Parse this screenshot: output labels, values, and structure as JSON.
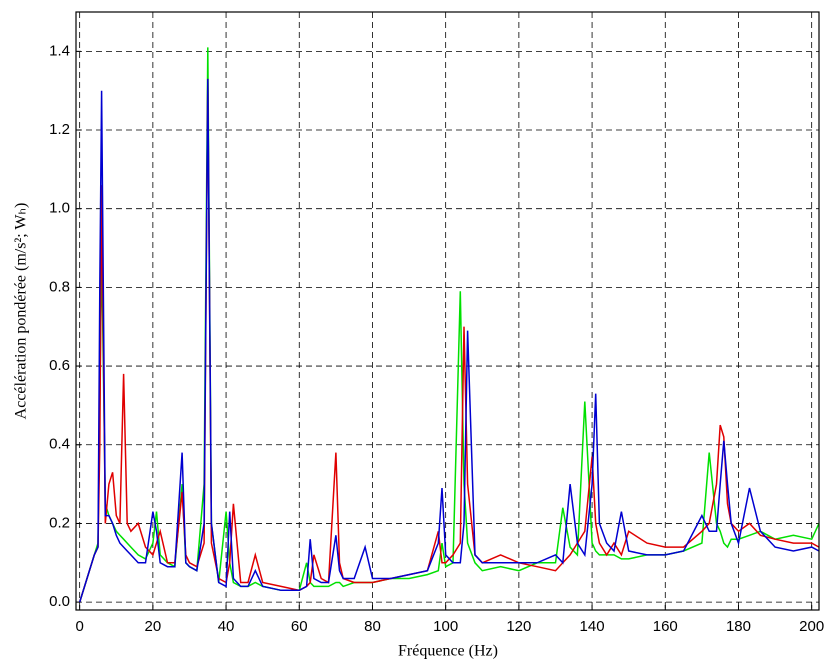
{
  "chart_data": {
    "type": "line",
    "xlabel": "Fréquence (Hz)",
    "ylabel": "Accélération pondérée (m/s²; Wₕ)",
    "xlim": [
      -1,
      202
    ],
    "ylim": [
      -0.02,
      1.5
    ],
    "xticks": [
      0,
      20,
      40,
      60,
      80,
      100,
      120,
      140,
      160,
      180,
      200
    ],
    "yticks": [
      {
        "value": 0,
        "label": "0.0"
      },
      0.2,
      0.4,
      0.6,
      0.8,
      {
        "value": 1,
        "label": "1.0"
      },
      1.2,
      1.4
    ],
    "grid": true,
    "x": [
      0,
      2,
      4,
      5,
      5.5,
      6,
      7,
      8,
      9,
      10,
      11,
      12,
      13,
      14,
      16,
      18,
      20,
      21,
      22,
      24,
      26,
      28,
      29,
      30,
      32,
      34,
      35,
      36,
      38,
      40,
      41,
      42,
      44,
      46,
      48,
      50,
      55,
      60,
      62,
      63,
      64,
      66,
      68,
      70,
      71,
      72,
      75,
      78,
      80,
      85,
      90,
      95,
      98,
      99,
      100,
      102,
      104,
      105,
      106,
      108,
      110,
      115,
      120,
      125,
      130,
      132,
      134,
      136,
      138,
      140,
      141,
      142,
      144,
      146,
      148,
      150,
      155,
      160,
      165,
      170,
      172,
      174,
      175,
      176,
      177,
      178,
      180,
      183,
      186,
      190,
      195,
      200,
      202
    ],
    "series": [
      {
        "color": "#00e000",
        "values": [
          0,
          0.06,
          0.12,
          0.15,
          0.5,
          0.9,
          0.25,
          0.22,
          0.2,
          0.18,
          0.17,
          0.16,
          0.15,
          0.14,
          0.12,
          0.11,
          0.15,
          0.23,
          0.12,
          0.1,
          0.09,
          0.3,
          0.1,
          0.09,
          0.08,
          0.3,
          1.41,
          0.2,
          0.05,
          0.23,
          0.1,
          0.05,
          0.04,
          0.04,
          0.05,
          0.04,
          0.03,
          0.03,
          0.1,
          0.05,
          0.04,
          0.04,
          0.04,
          0.05,
          0.05,
          0.04,
          0.05,
          0.05,
          0.05,
          0.06,
          0.06,
          0.07,
          0.08,
          0.15,
          0.09,
          0.1,
          0.79,
          0.3,
          0.15,
          0.1,
          0.08,
          0.09,
          0.08,
          0.1,
          0.1,
          0.24,
          0.14,
          0.12,
          0.51,
          0.15,
          0.13,
          0.12,
          0.12,
          0.12,
          0.11,
          0.11,
          0.12,
          0.12,
          0.13,
          0.15,
          0.38,
          0.2,
          0.18,
          0.15,
          0.14,
          0.16,
          0.16,
          0.17,
          0.18,
          0.16,
          0.17,
          0.16,
          0.2
        ]
      },
      {
        "color": "#e00000",
        "values": [
          0,
          0.06,
          0.12,
          0.14,
          0.4,
          1.06,
          0.2,
          0.3,
          0.33,
          0.22,
          0.2,
          0.58,
          0.2,
          0.18,
          0.2,
          0.14,
          0.12,
          0.15,
          0.18,
          0.1,
          0.1,
          0.28,
          0.12,
          0.1,
          0.09,
          0.15,
          1.33,
          0.15,
          0.06,
          0.05,
          0.1,
          0.25,
          0.05,
          0.05,
          0.12,
          0.05,
          0.04,
          0.03,
          0.04,
          0.05,
          0.12,
          0.06,
          0.05,
          0.38,
          0.1,
          0.06,
          0.05,
          0.05,
          0.05,
          0.06,
          0.07,
          0.08,
          0.18,
          0.1,
          0.1,
          0.12,
          0.15,
          0.7,
          0.3,
          0.12,
          0.1,
          0.12,
          0.1,
          0.09,
          0.08,
          0.1,
          0.12,
          0.15,
          0.18,
          0.37,
          0.2,
          0.15,
          0.12,
          0.15,
          0.12,
          0.18,
          0.15,
          0.14,
          0.14,
          0.18,
          0.2,
          0.3,
          0.45,
          0.42,
          0.25,
          0.2,
          0.18,
          0.2,
          0.17,
          0.16,
          0.15,
          0.15,
          0.14
        ]
      },
      {
        "color": "#0000d0",
        "values": [
          0,
          0.06,
          0.12,
          0.14,
          0.8,
          1.3,
          0.22,
          0.22,
          0.2,
          0.17,
          0.15,
          0.14,
          0.13,
          0.12,
          0.1,
          0.1,
          0.23,
          0.18,
          0.1,
          0.09,
          0.09,
          0.38,
          0.1,
          0.09,
          0.08,
          0.2,
          1.33,
          0.2,
          0.05,
          0.04,
          0.23,
          0.06,
          0.04,
          0.04,
          0.08,
          0.04,
          0.03,
          0.03,
          0.04,
          0.16,
          0.06,
          0.05,
          0.05,
          0.17,
          0.08,
          0.06,
          0.06,
          0.14,
          0.06,
          0.06,
          0.07,
          0.08,
          0.15,
          0.29,
          0.12,
          0.1,
          0.1,
          0.2,
          0.69,
          0.12,
          0.1,
          0.1,
          0.1,
          0.1,
          0.12,
          0.1,
          0.3,
          0.15,
          0.12,
          0.3,
          0.53,
          0.2,
          0.15,
          0.13,
          0.23,
          0.13,
          0.12,
          0.12,
          0.13,
          0.22,
          0.18,
          0.18,
          0.3,
          0.41,
          0.3,
          0.2,
          0.15,
          0.29,
          0.18,
          0.14,
          0.13,
          0.14,
          0.13
        ]
      }
    ]
  }
}
